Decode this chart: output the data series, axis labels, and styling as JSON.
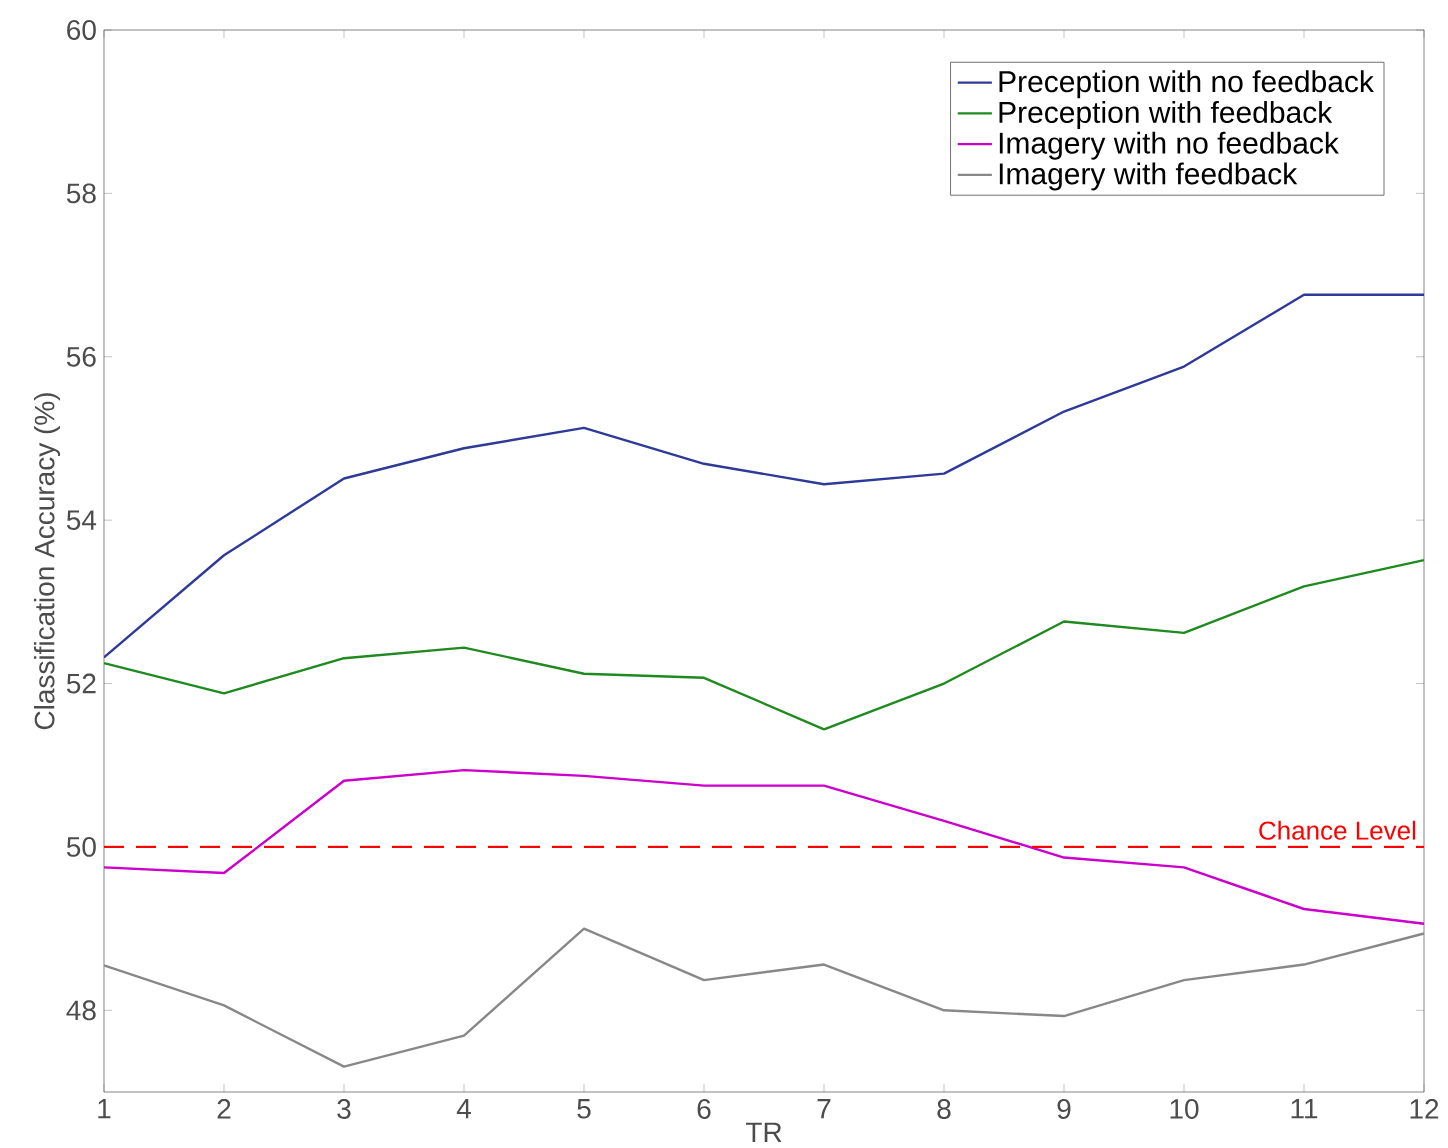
{
  "chart_data": {
    "type": "line",
    "xlabel": "TR",
    "ylabel": "Classification Accuracy (%)",
    "x": [
      1,
      2,
      3,
      4,
      5,
      6,
      7,
      8,
      9,
      10,
      11,
      12
    ],
    "series": [
      {
        "name": "Preception with no feedback",
        "color": "#2e3a9a",
        "values": [
          52.32,
          53.57,
          54.51,
          54.88,
          55.13,
          54.69,
          54.44,
          54.57,
          55.33,
          55.88,
          56.76,
          56.76
        ]
      },
      {
        "name": "Preception with feedback",
        "color": "#1f8a1f",
        "values": [
          52.25,
          51.88,
          52.31,
          52.44,
          52.12,
          52.07,
          51.44,
          52.0,
          52.76,
          52.62,
          53.19,
          53.51
        ]
      },
      {
        "name": "Imagery with no feedback",
        "color": "#cc00cc",
        "values": [
          49.75,
          49.68,
          50.81,
          50.94,
          50.87,
          50.75,
          50.75,
          50.32,
          49.87,
          49.75,
          49.24,
          49.06
        ]
      },
      {
        "name": "Imagery with feedback",
        "color": "#888888",
        "values": [
          48.55,
          48.06,
          47.31,
          47.69,
          49.0,
          48.37,
          48.56,
          48.0,
          47.93,
          48.37,
          48.56,
          48.94
        ]
      }
    ],
    "ref_lines": [
      {
        "axis": "y",
        "value": 50,
        "label": "Chance Level",
        "color": "#ff0000",
        "line_style": "dashed"
      }
    ],
    "xlim": [
      1,
      12
    ],
    "xticks": [
      1,
      2,
      3,
      4,
      5,
      6,
      7,
      8,
      9,
      10,
      11,
      12
    ],
    "ylim": [
      47,
      60
    ],
    "yticks": [
      48,
      50,
      52,
      54,
      56,
      58,
      60
    ],
    "grid": false,
    "legend": "top right",
    "marker": "none",
    "line_style": "solid"
  }
}
